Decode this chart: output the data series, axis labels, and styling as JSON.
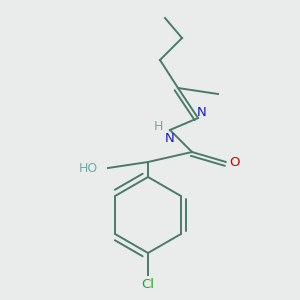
{
  "background_color": "#eaecec",
  "bond_color": "#4a7a6a",
  "atom_colors": {
    "N": "#1a1acc",
    "O": "#cc0000",
    "HO": "#6aacac",
    "Cl": "#22aa22",
    "H": "#6aacac"
  },
  "figsize": [
    3.0,
    3.0
  ],
  "dpi": 100,
  "lw": 1.4,
  "fontsize": 9.5
}
